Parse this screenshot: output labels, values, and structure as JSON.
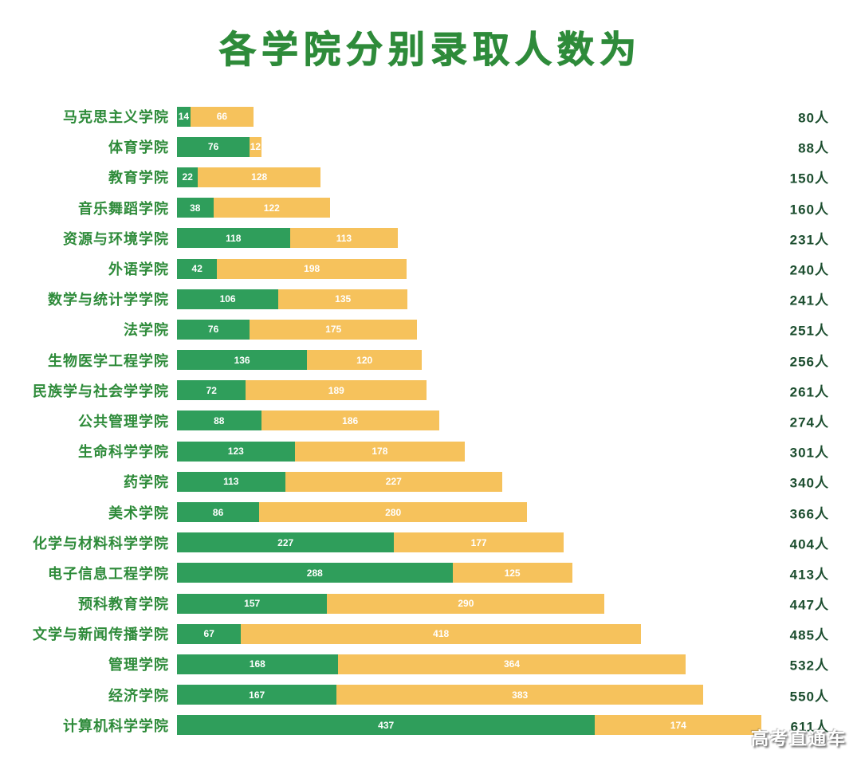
{
  "title": "各学院分别录取人数为",
  "watermark": "高考直通车",
  "colors": {
    "bar_green": "#2f9e5b",
    "bar_yellow": "#f6c25c",
    "title_green": "#2e8b3a",
    "label_green": "#2e8b3a",
    "total_green": "#1b4d2e",
    "value_text": "#ffffff",
    "background": "#ffffff"
  },
  "chart_data": {
    "type": "bar",
    "orientation": "horizontal",
    "stacked": true,
    "title": "各学院分别录取人数为",
    "unit": "人",
    "legend": "none",
    "grid": false,
    "xlim": [
      0,
      650
    ],
    "categories": [
      "马克思主义学院",
      "体育学院",
      "教育学院",
      "音乐舞蹈学院",
      "资源与环境学院",
      "外语学院",
      "数学与统计学学院",
      "法学院",
      "生物医学工程学院",
      "民族学与社会学学院",
      "公共管理学院",
      "生命科学学院",
      "药学院",
      "美术学院",
      "化学与材料科学学院",
      "电子信息工程学院",
      "预科教育学院",
      "文学与新闻传播学院",
      "管理学院",
      "经济学院",
      "计算机科学学院"
    ],
    "series": [
      {
        "name": "segment-green",
        "color": "#2f9e5b",
        "values": [
          14,
          76,
          22,
          38,
          118,
          42,
          106,
          76,
          136,
          72,
          88,
          123,
          113,
          86,
          227,
          288,
          157,
          67,
          168,
          167,
          437
        ]
      },
      {
        "name": "segment-yellow",
        "color": "#f6c25c",
        "values": [
          66,
          12,
          128,
          122,
          113,
          198,
          135,
          175,
          120,
          189,
          186,
          178,
          227,
          280,
          177,
          125,
          290,
          418,
          364,
          383,
          174
        ]
      }
    ],
    "totals": [
      80,
      88,
      150,
      160,
      231,
      240,
      241,
      251,
      256,
      261,
      274,
      301,
      340,
      366,
      404,
      413,
      447,
      485,
      532,
      550,
      611
    ]
  }
}
